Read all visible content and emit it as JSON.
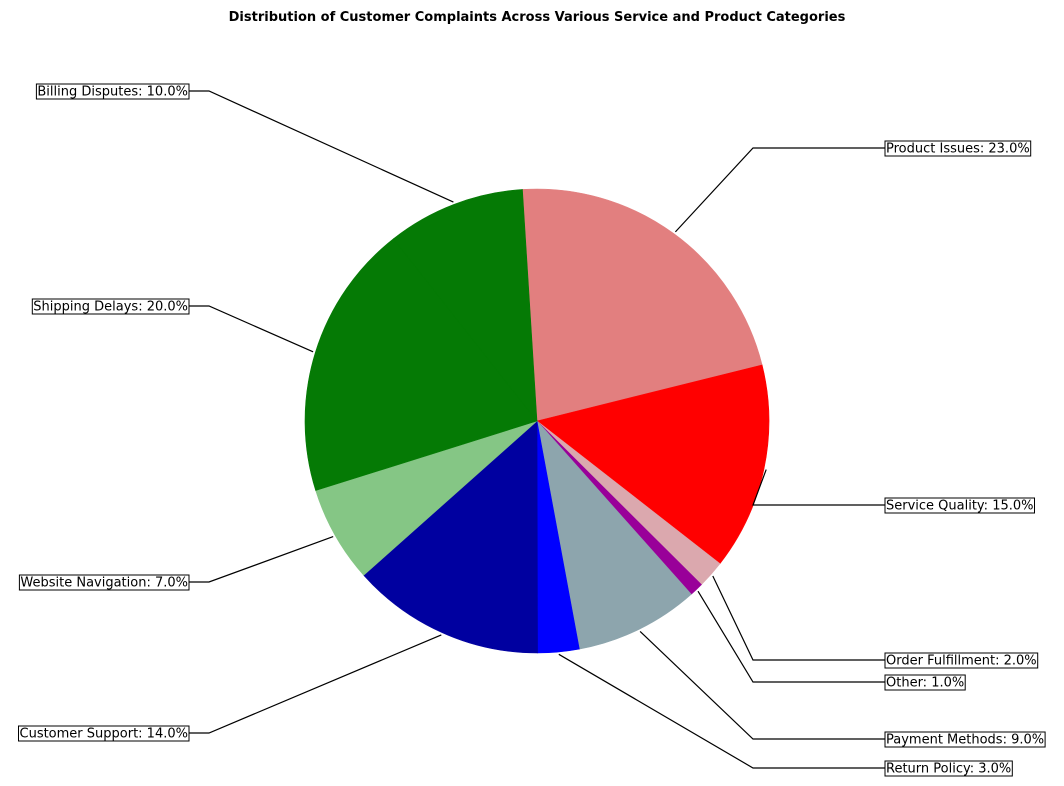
{
  "chart_data": {
    "type": "pie",
    "title": "Distribution of Customer Complaints Across Various Service and Product Categories",
    "slices": [
      {
        "label": "Product Issues",
        "value": 23.0,
        "label_text": "Product Issues: 23.0%",
        "color": "#e27f7f"
      },
      {
        "label": "Service Quality",
        "value": 15.0,
        "label_text": "Service Quality: 15.0%",
        "color": "#ff0000"
      },
      {
        "label": "Order Fulfillment",
        "value": 2.0,
        "label_text": "Order Fulfillment: 2.0%",
        "color": "#dba8ae"
      },
      {
        "label": "Other",
        "value": 1.0,
        "label_text": "Other: 1.0%",
        "color": "#990099"
      },
      {
        "label": "Payment Methods",
        "value": 9.0,
        "label_text": "Payment Methods: 9.0%",
        "color": "#8da5ad"
      },
      {
        "label": "Return Policy",
        "value": 3.0,
        "label_text": "Return Policy: 3.0%",
        "color": "#0000ff"
      },
      {
        "label": "Customer Support",
        "value": 14.0,
        "label_text": "Customer Support: 14.0%",
        "color": "#0000a0"
      },
      {
        "label": "Website Navigation",
        "value": 7.0,
        "label_text": "Website Navigation: 7.0%",
        "color": "#85c685"
      },
      {
        "label": "Shipping Delays",
        "value": 20.0,
        "label_text": "Shipping Delays: 20.0%",
        "color": "#057a05"
      },
      {
        "label": "Billing Disputes",
        "value": 10.0,
        "label_text": "Billing Disputes: 10.0%",
        "color": "#057a05"
      }
    ]
  }
}
